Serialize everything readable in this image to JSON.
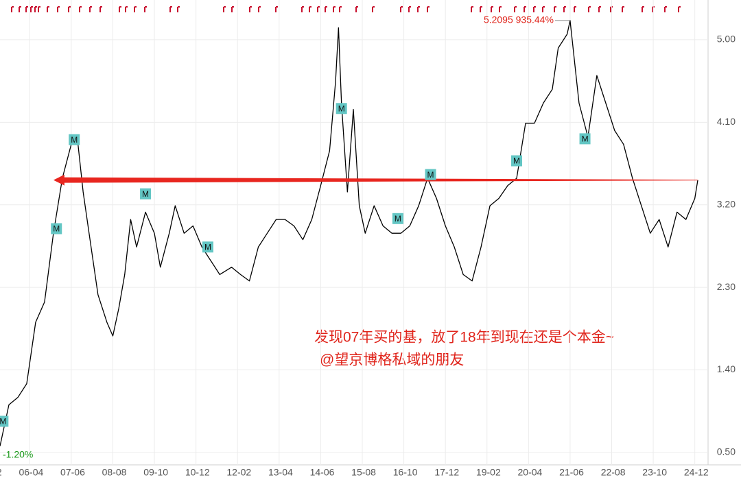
{
  "chart_data": {
    "type": "line",
    "x": [
      "05-06",
      "05-09",
      "05-12",
      "06-03",
      "06-06",
      "06-09",
      "06-12",
      "07-03",
      "07-06",
      "07-08",
      "07-10",
      "07-12",
      "08-03",
      "08-06",
      "08-08",
      "08-10",
      "08-12",
      "09-02",
      "09-04",
      "09-07",
      "09-10",
      "09-12",
      "10-03",
      "10-05",
      "10-08",
      "10-11",
      "11-02",
      "11-05",
      "11-08",
      "11-12",
      "12-03",
      "12-06",
      "12-09",
      "12-12",
      "13-03",
      "13-06",
      "13-09",
      "13-12",
      "14-03",
      "14-06",
      "14-09",
      "14-11",
      "14-12",
      "15-01",
      "15-03",
      "15-05",
      "15-07",
      "15-09",
      "15-12",
      "16-03",
      "16-06",
      "16-09",
      "16-12",
      "17-03",
      "17-06",
      "17-09",
      "17-12",
      "18-03",
      "18-06",
      "18-09",
      "18-12",
      "19-03",
      "19-06",
      "19-09",
      "19-12",
      "20-03",
      "20-06",
      "20-09",
      "20-12",
      "21-02",
      "21-05",
      "21-06",
      "21-09",
      "21-12",
      "22-03",
      "22-06",
      "22-09",
      "22-12",
      "23-03",
      "23-06",
      "23-09",
      "23-12",
      "24-03",
      "24-06",
      "24-09",
      "24-12",
      "25-01"
    ],
    "series": [
      {
        "color": "#000000",
        "values": [
          0.57,
          1.02,
          1.1,
          1.25,
          1.92,
          2.14,
          2.89,
          3.49,
          3.86,
          3.94,
          3.34,
          2.89,
          2.22,
          1.92,
          1.77,
          2.07,
          2.44,
          3.04,
          2.74,
          3.12,
          2.89,
          2.52,
          2.89,
          3.19,
          2.89,
          2.97,
          2.74,
          2.59,
          2.44,
          2.52,
          2.44,
          2.37,
          2.74,
          2.89,
          3.04,
          3.04,
          2.97,
          2.82,
          3.04,
          3.41,
          3.79,
          4.54,
          5.13,
          4.31,
          3.34,
          4.24,
          3.19,
          2.89,
          3.19,
          2.97,
          2.89,
          2.89,
          2.97,
          3.19,
          3.49,
          3.27,
          2.97,
          2.74,
          2.44,
          2.37,
          2.74,
          3.19,
          3.27,
          3.41,
          3.49,
          4.09,
          4.09,
          4.31,
          4.46,
          4.91,
          5.06,
          5.2095,
          4.31,
          3.94,
          4.61,
          4.31,
          4.01,
          3.86,
          3.49,
          3.19,
          2.89,
          3.04,
          2.74,
          3.12,
          3.04,
          3.27,
          3.47
        ]
      }
    ],
    "xlim": [
      "05-06",
      "25-04"
    ],
    "xticks": [
      {
        "value": "05-02",
        "label": "2"
      },
      "06-04",
      "07-06",
      "08-08",
      "09-10",
      "10-12",
      "12-02",
      "13-04",
      "14-06",
      "15-08",
      "16-10",
      "17-12",
      "19-02",
      "20-04",
      "21-06",
      "22-08",
      "23-10",
      "24-12"
    ],
    "ylim": [
      0.365,
      5.433
    ],
    "yticks": [
      {
        "value": 0.5,
        "label": "0.50"
      },
      {
        "value": 1.4,
        "label": "1.40"
      },
      {
        "value": 2.3,
        "label": "2.30"
      },
      {
        "value": 3.2,
        "label": "3.20"
      },
      {
        "value": 4.1,
        "label": "4.10"
      },
      {
        "value": 5,
        "label": "5.00"
      }
    ],
    "grid": true,
    "annotations": [
      {
        "text": "5.2095 935.44%",
        "x": "21-06",
        "y": 5.2095,
        "color": "#e0241b"
      },
      {
        "text": "-1.20%",
        "x": "05-06",
        "y": 0.57,
        "color": "#1a9a1a"
      }
    ],
    "arrow": {
      "y": 3.47,
      "x": [
        "06-12",
        "25-01"
      ],
      "color": "#e8261f"
    },
    "markers": {
      "label": "M",
      "color": "#63c6c4",
      "points": [
        {
          "x": "05-07",
          "y": 0.84
        },
        {
          "x": "07-01",
          "y": 2.94
        },
        {
          "x": "07-07",
          "y": 3.91
        },
        {
          "x": "09-07",
          "y": 3.32
        },
        {
          "x": "11-04",
          "y": 2.74
        },
        {
          "x": "15-01",
          "y": 4.25
        },
        {
          "x": "16-08",
          "y": 3.05
        },
        {
          "x": "17-07",
          "y": 3.53
        },
        {
          "x": "19-12",
          "y": 3.68
        },
        {
          "x": "21-11",
          "y": 3.92
        }
      ]
    },
    "note": [
      "发现07年买的基，放了18年到现在还是个本金~",
      "@望京博格私域的朋友"
    ]
  }
}
